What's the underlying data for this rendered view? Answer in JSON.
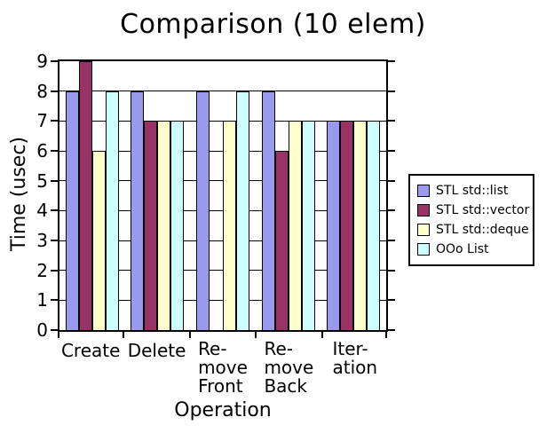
{
  "chart": {
    "title": "Comparison (10 elem)",
    "x_axis_title": "Operation",
    "y_axis_title": "Time (usec)"
  },
  "chart_data": {
    "type": "bar",
    "title": "Comparison (10 elem)",
    "xlabel": "Operation",
    "ylabel": "Time (usec)",
    "ylim": [
      0,
      9
    ],
    "y_ticks": [
      0,
      1,
      2,
      3,
      4,
      5,
      6,
      7,
      8,
      9
    ],
    "grid": true,
    "legend_position": "right",
    "categories": [
      "Create",
      "Delete",
      "Remove Front",
      "Remove Back",
      "Iteration"
    ],
    "category_labels": [
      [
        "Create"
      ],
      [
        "Delete"
      ],
      [
        "Re-",
        "move",
        "Front"
      ],
      [
        "Re-",
        "move",
        "Back"
      ],
      [
        "Iter-",
        "ation"
      ]
    ],
    "series": [
      {
        "name": "STL std::list",
        "color": "#9999EE",
        "values": [
          8,
          8,
          8,
          8,
          7
        ]
      },
      {
        "name": "STL std::vector",
        "color": "#993366",
        "values": [
          9,
          7,
          0,
          6,
          7
        ]
      },
      {
        "name": "STL std::deque",
        "color": "#FFFFCC",
        "values": [
          6,
          7,
          7,
          7,
          7
        ]
      },
      {
        "name": "OOo List",
        "color": "#CCFFFF",
        "values": [
          8,
          7,
          8,
          7,
          7
        ]
      }
    ]
  }
}
